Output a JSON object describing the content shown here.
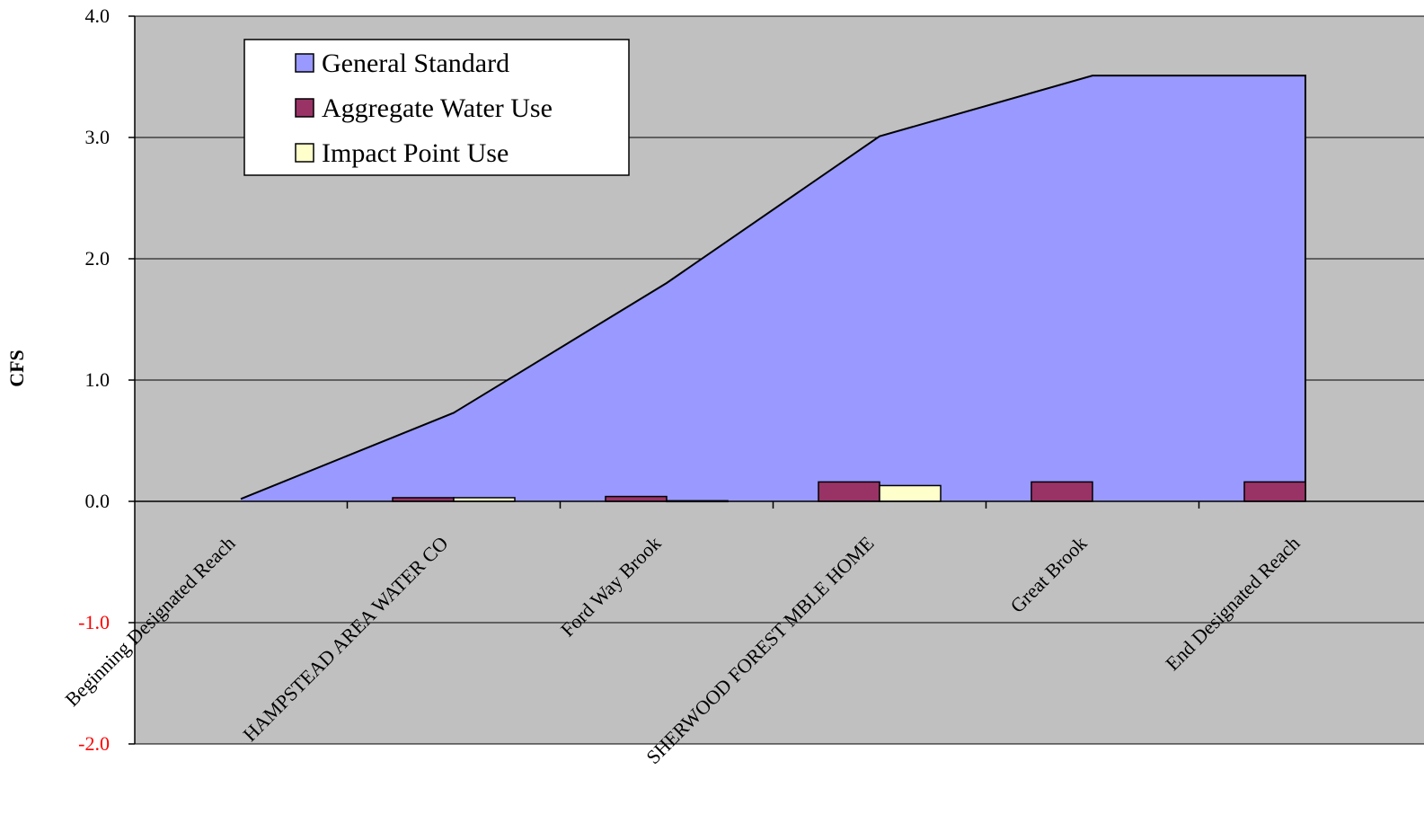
{
  "chart_data": {
    "type": "area",
    "title": "",
    "xlabel": "",
    "ylabel": "CFS",
    "ylim": [
      -2.0,
      4.0
    ],
    "yticks": [
      -2.0,
      -1.0,
      0.0,
      1.0,
      2.0,
      3.0,
      4.0
    ],
    "ytick_labels": [
      "-2.0",
      "-1.0",
      "0.0",
      "1.0",
      "2.0",
      "3.0",
      "4.0"
    ],
    "grid": true,
    "legend_position": "top-left",
    "categories": [
      "Beginning Designated Reach",
      "HAMPSTEAD AREA WATER CO",
      "Ford Way Brook",
      "SHERWOOD FOREST MBLE HOME",
      "Great Brook",
      "End Designated Reach"
    ],
    "series": [
      {
        "name": "General Standard",
        "type": "area",
        "color": "#9999ff",
        "values": [
          0.02,
          0.73,
          1.8,
          3.01,
          3.51,
          3.51
        ]
      },
      {
        "name": "Aggregate Water Use",
        "type": "bar",
        "color": "#993366",
        "values": [
          0.0,
          0.03,
          0.04,
          0.16,
          0.16,
          0.16
        ]
      },
      {
        "name": "Impact Point Use",
        "type": "bar",
        "color": "#ffffcc",
        "values": [
          0.0,
          0.03,
          0.005,
          0.13,
          0.0,
          0.0
        ]
      }
    ],
    "colors": {
      "plot_background": "#c0c0c0",
      "gridline": "#000000",
      "negative_tick": "#ff0000"
    }
  }
}
